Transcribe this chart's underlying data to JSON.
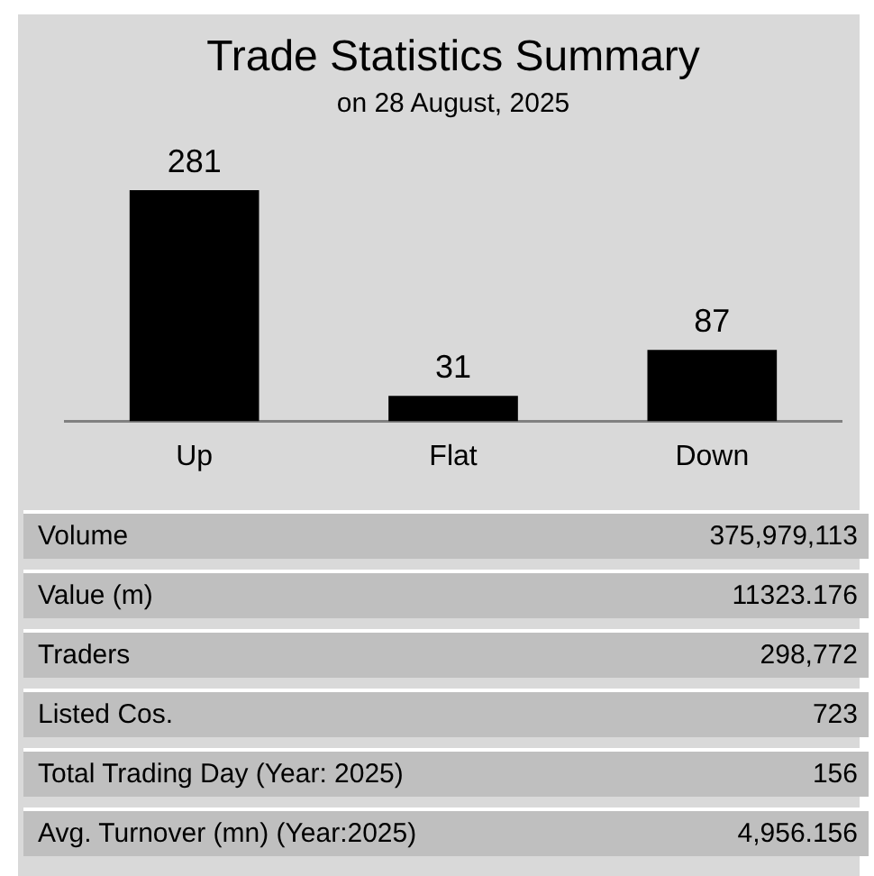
{
  "chart_data": [
    {
      "type": "bar",
      "title": "Trade Statistics Summary",
      "subtitle": "on 28 August, 2025",
      "categories": [
        "Up",
        "Flat",
        "Down"
      ],
      "values": [
        281,
        31,
        87
      ],
      "color": "#000000",
      "data_labels": true,
      "grid": false,
      "legend": false,
      "tick_labels": "x"
    },
    {
      "type": "other",
      "annotations": [
        "Volume",
        "375,979,113",
        "Value (m)",
        "11323.176",
        "Traders",
        "298,772",
        "Listed Cos.",
        "723",
        "Total Trading Day (Year: 2025)",
        "156",
        "Avg. Turnover (mn) (Year:2025)",
        "4,956.156"
      ]
    }
  ]
}
